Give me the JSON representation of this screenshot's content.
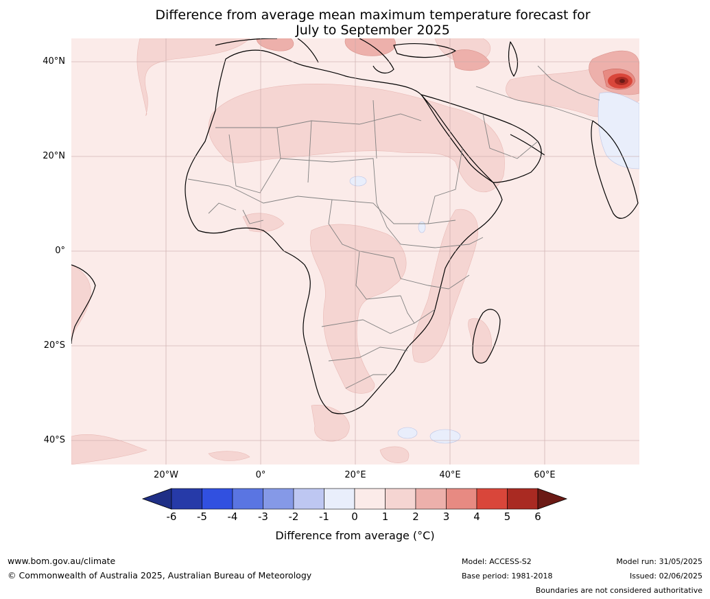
{
  "title": {
    "line1": "Difference from average mean maximum temperature forecast for",
    "line2": "July to September 2025"
  },
  "map": {
    "lat_labels": [
      "40°N",
      "20°N",
      "0°",
      "20°S",
      "40°S"
    ],
    "lon_labels": [
      "20°W",
      "0°",
      "20°E",
      "40°E",
      "60°E"
    ],
    "colors": {
      "ocean_base": "#fbebe9",
      "anomaly_1_2": "#f5d5d2",
      "anomaly_2_3": "#edb0ab",
      "anomaly_3_4": "#e78a82",
      "anomaly_4_5": "#d9463a",
      "anomaly_5_6": "#a92a22",
      "cool_0_1": "#e9eefb",
      "coast": "#000000",
      "borders": "#808080",
      "grid": "#c8a8a8"
    }
  },
  "colorbar": {
    "ticks": [
      "-6",
      "-5",
      "-4",
      "-3",
      "-2",
      "-1",
      "0",
      "1",
      "2",
      "3",
      "4",
      "5",
      "6"
    ],
    "colors": [
      "#1f2f86",
      "#263aa8",
      "#3150e0",
      "#5a75e2",
      "#8599e7",
      "#bec7f2",
      "#e9eefb",
      "#fbebe9",
      "#f5d5d2",
      "#edb0ab",
      "#e78a82",
      "#d9463a",
      "#a92a22",
      "#6b1a15"
    ],
    "label": "Difference from average (°C)"
  },
  "footer": {
    "website": "www.bom.gov.au/climate",
    "copyright": "© Commonwealth of Australia 2025, Australian Bureau of Meteorology",
    "model": "Model: ACCESS-S2",
    "base_period": "Base period: 1981-2018",
    "model_run": "Model run: 31/05/2025",
    "issued": "Issued: 02/06/2025",
    "disclaimer": "Boundaries are not considered authoritative"
  }
}
